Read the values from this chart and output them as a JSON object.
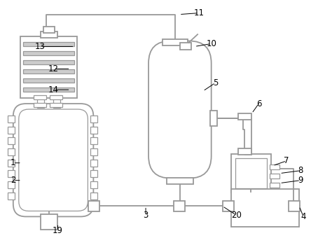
{
  "bg_color": "#ffffff",
  "line_color": "#999999",
  "line_width": 1.3,
  "fig_w": 4.44,
  "fig_h": 3.4,
  "dpi": 100
}
